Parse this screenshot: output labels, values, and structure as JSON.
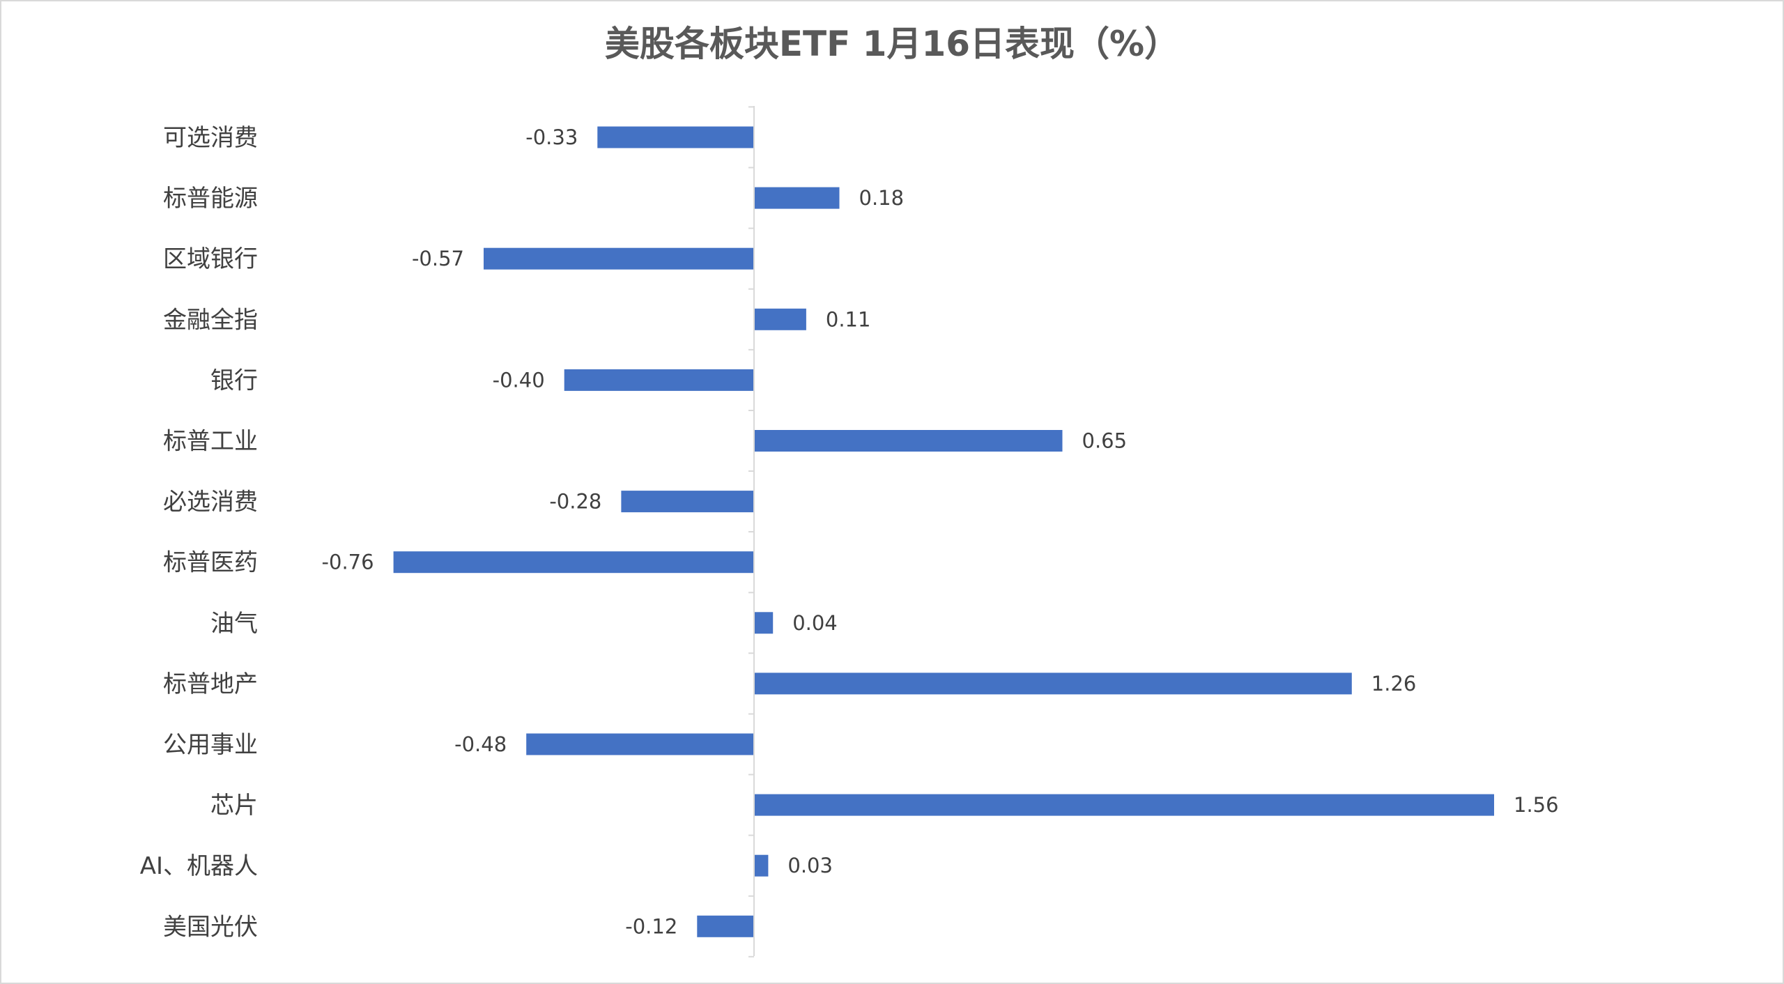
{
  "chart_data": {
    "type": "bar",
    "orientation": "horizontal",
    "title": "美股各板块ETF  1月16日表现（%）",
    "xlabel": "",
    "ylabel": "",
    "grid": false,
    "legend": "none",
    "bar_color": "#4472C4",
    "categories": [
      "可选消费",
      "标普能源",
      "区域银行",
      "金融全指",
      "银行",
      "标普工业",
      "必选消费",
      "标普医药",
      "油气",
      "标普地产",
      "公用事业",
      "芯片",
      "AI、机器人",
      "美国光伏"
    ],
    "values": [
      -0.33,
      0.18,
      -0.57,
      0.11,
      -0.4,
      0.65,
      -0.28,
      -0.76,
      0.04,
      1.26,
      -0.48,
      1.56,
      0.03,
      -0.12
    ],
    "value_labels": [
      "-0.33",
      "0.18",
      "-0.57",
      "0.11",
      "-0.40",
      "0.65",
      "-0.28",
      "-0.76",
      "0.04",
      "1.26",
      "-0.48",
      "1.56",
      "0.03",
      "-0.12"
    ],
    "xlim": [
      -1.0,
      2.0
    ]
  }
}
